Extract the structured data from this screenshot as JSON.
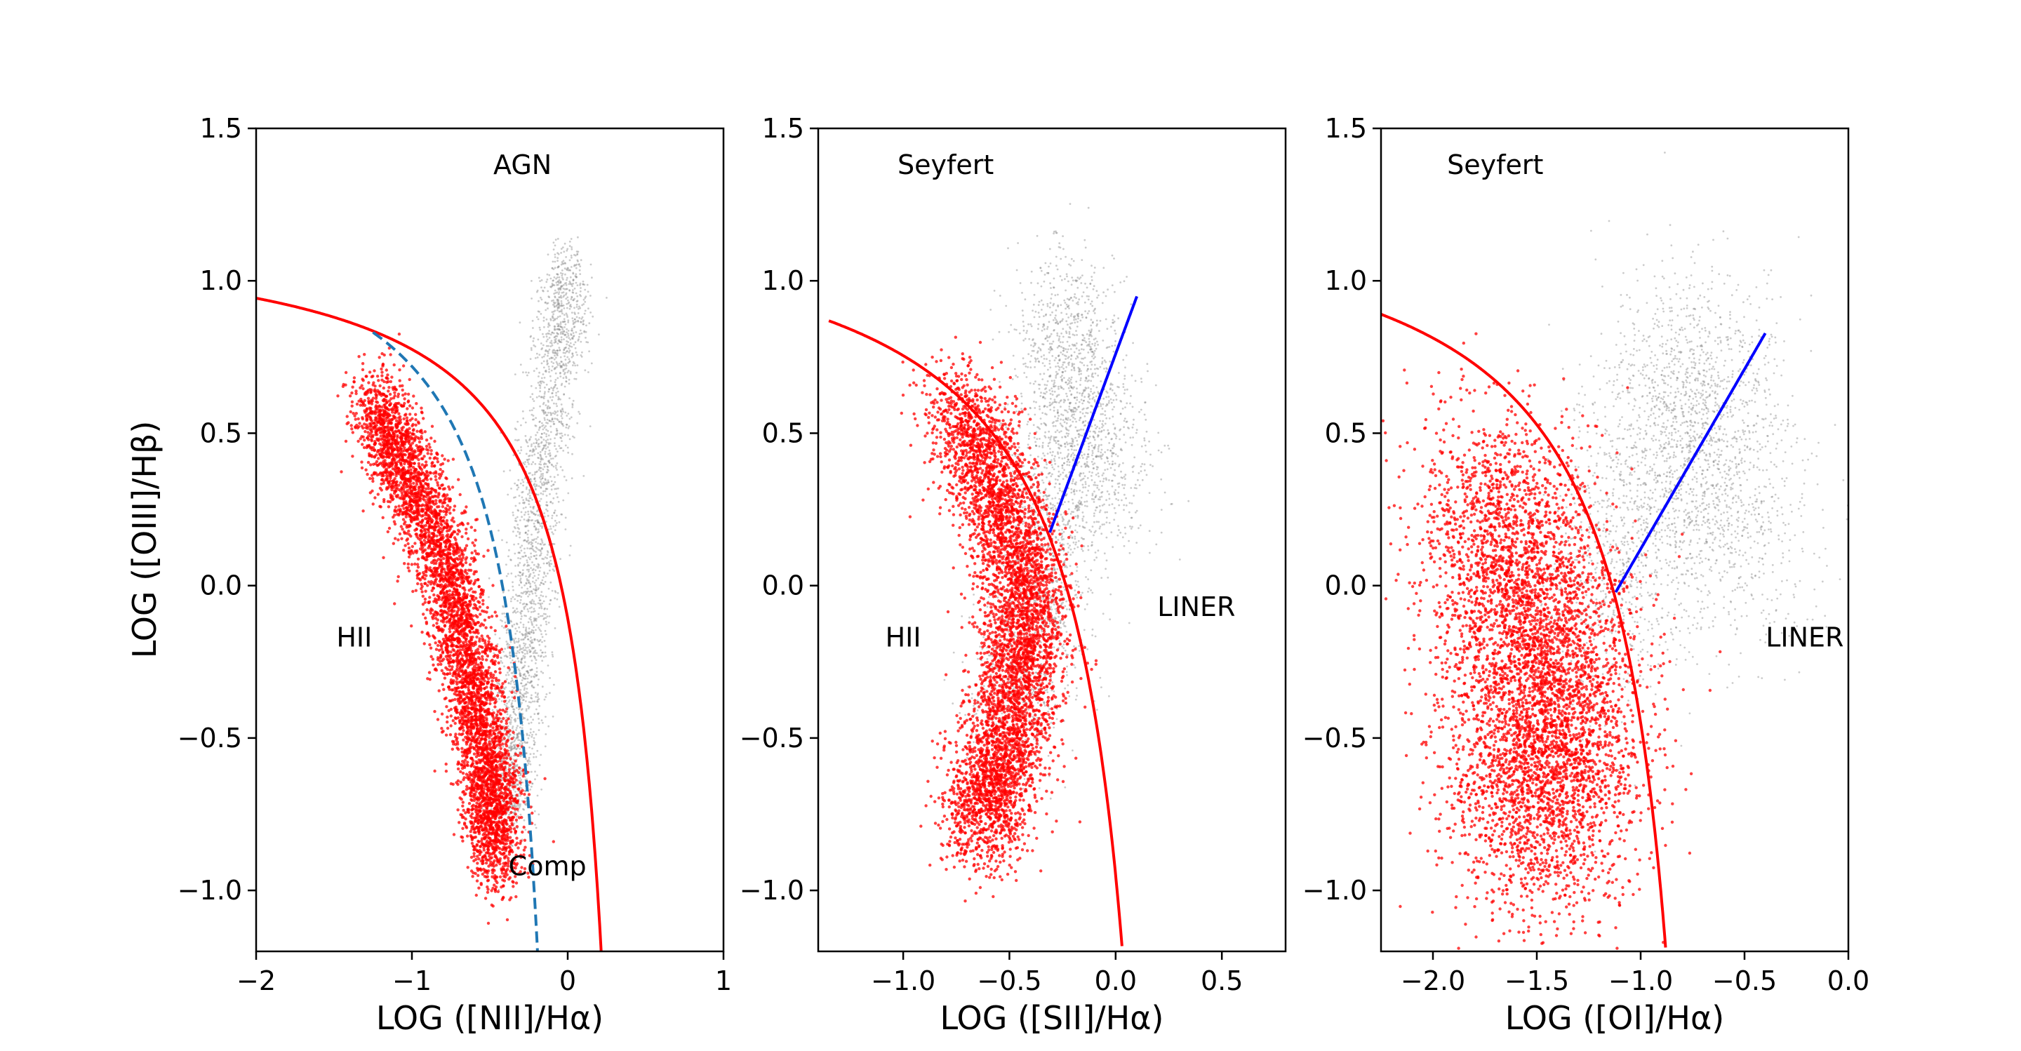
{
  "chart_data": [
    {
      "type": "scatter",
      "xlabel": "LOG ([NII]/Hα)",
      "ylabel": "LOG ([OIII]/Hβ)",
      "xlim": [
        -2,
        1
      ],
      "ylim": [
        -1.2,
        1.5
      ],
      "xticks": [
        -2,
        -1,
        0,
        1
      ],
      "xtick_labels": [
        "−2",
        "−1",
        "0",
        "1"
      ],
      "yticks": [
        -1.0,
        -0.5,
        0.0,
        0.5,
        1.0,
        1.5
      ],
      "ytick_labels": [
        "−1.0",
        "−0.5",
        "0.0",
        "0.5",
        "1.0",
        "1.5"
      ],
      "annotations": [
        {
          "text": "AGN",
          "x": -0.29,
          "y": 1.38
        },
        {
          "text": "HII",
          "x": -1.37,
          "y": -0.17
        },
        {
          "text": "Comp",
          "x": -0.13,
          "y": -0.92
        }
      ],
      "series": [
        {
          "kind": "scatter",
          "color": "#ff0000",
          "region": "star-forming cloud",
          "ridge": [
            [
              -1.25,
              0.6
            ],
            [
              -1.0,
              0.35
            ],
            [
              -0.75,
              0.0
            ],
            [
              -0.6,
              -0.35
            ],
            [
              -0.5,
              -0.65
            ],
            [
              -0.45,
              -0.9
            ]
          ],
          "width": 0.09
        },
        {
          "kind": "scatter",
          "color": "#8c8c8c",
          "region": "AGN cloud",
          "ridge": [
            [
              -0.38,
              -0.75
            ],
            [
              -0.33,
              -0.45
            ],
            [
              -0.25,
              -0.05
            ],
            [
              -0.18,
              0.35
            ],
            [
              -0.07,
              0.75
            ],
            [
              0.0,
              1.05
            ]
          ],
          "width": 0.08
        },
        {
          "kind": "curve",
          "color": "#ff0000",
          "style": "solid",
          "equation": "0.61/(x-0.47)+1.19",
          "x_range": [
            -2.0,
            0.22
          ]
        },
        {
          "kind": "curve",
          "color": "#1f77b4",
          "style": "dashed",
          "equation": "0.61/(x-0.05)+1.3",
          "x_range": [
            -1.25,
            -0.19
          ]
        }
      ]
    },
    {
      "type": "scatter",
      "xlabel": "LOG ([SII]/Hα)",
      "xlim": [
        -1.4,
        0.8
      ],
      "ylim": [
        -1.2,
        1.5
      ],
      "xticks": [
        -1.0,
        -0.5,
        0.0,
        0.5
      ],
      "xtick_labels": [
        "−1.0",
        "−0.5",
        "0.0",
        "0.5"
      ],
      "yticks": [
        -1.0,
        -0.5,
        0.0,
        0.5,
        1.0,
        1.5
      ],
      "ytick_labels": [
        "−1.0",
        "−0.5",
        "0.0",
        "0.5",
        "1.0",
        "1.5"
      ],
      "annotations": [
        {
          "text": "Seyfert",
          "x": -0.8,
          "y": 1.38
        },
        {
          "text": "HII",
          "x": -1.0,
          "y": -0.17
        },
        {
          "text": "LINER",
          "x": 0.38,
          "y": -0.07
        }
      ],
      "series": [
        {
          "kind": "scatter",
          "color": "#ff0000",
          "region": "star-forming arc",
          "ridge": [
            [
              -0.75,
              0.6
            ],
            [
              -0.55,
              0.3
            ],
            [
              -0.42,
              0.0
            ],
            [
              -0.45,
              -0.3
            ],
            [
              -0.55,
              -0.6
            ],
            [
              -0.65,
              -0.8
            ]
          ],
          "width": 0.1
        },
        {
          "kind": "scatter",
          "color": "#8c8c8c",
          "region": "AGN cloud",
          "ridge": [
            [
              -0.55,
              -0.5
            ],
            [
              -0.35,
              -0.1
            ],
            [
              -0.25,
              0.3
            ],
            [
              -0.2,
              0.6
            ],
            [
              -0.25,
              0.95
            ],
            [
              0.05,
              0.2
            ]
          ],
          "width": 0.12
        },
        {
          "kind": "curve",
          "color": "#ff0000",
          "style": "solid",
          "equation": "0.72/(x-0.32)+1.30",
          "x_range": [
            -1.35,
            0.03
          ]
        },
        {
          "kind": "line",
          "color": "#0000ff",
          "style": "solid",
          "equation": "1.89x+0.76",
          "x_range": [
            -0.31,
            0.1
          ]
        }
      ]
    },
    {
      "type": "scatter",
      "xlabel": "LOG ([OI]/Hα)",
      "xlim": [
        -2.25,
        0.0
      ],
      "ylim": [
        -1.2,
        1.5
      ],
      "xticks": [
        -2.0,
        -1.5,
        -1.0,
        -0.5,
        0.0
      ],
      "xtick_labels": [
        "−2.0",
        "−1.5",
        "−1.0",
        "−0.5",
        "0.0"
      ],
      "yticks": [
        -1.0,
        -0.5,
        0.0,
        0.5,
        1.0,
        1.5
      ],
      "ytick_labels": [
        "−1.0",
        "−0.5",
        "0.0",
        "0.5",
        "1.0",
        "1.5"
      ],
      "annotations": [
        {
          "text": "Seyfert",
          "x": -1.7,
          "y": 1.38
        },
        {
          "text": "LINER",
          "x": -0.21,
          "y": -0.17
        }
      ],
      "series": [
        {
          "kind": "scatter",
          "color": "#ff0000",
          "region": "star-forming cloud",
          "ridge": [
            [
              -1.75,
              0.3
            ],
            [
              -1.55,
              0.0
            ],
            [
              -1.45,
              -0.3
            ],
            [
              -1.45,
              -0.6
            ],
            [
              -1.5,
              -0.8
            ]
          ],
          "width": 0.22
        },
        {
          "kind": "scatter",
          "color": "#8c8c8c",
          "region": "AGN cloud",
          "ridge": [
            [
              -1.2,
              -0.2
            ],
            [
              -1.0,
              0.2
            ],
            [
              -0.85,
              0.5
            ],
            [
              -0.75,
              0.8
            ],
            [
              -0.6,
              0.4
            ],
            [
              -0.5,
              0.0
            ]
          ],
          "width": 0.2
        },
        {
          "kind": "curve",
          "color": "#ff0000",
          "style": "solid",
          "equation": "0.73/(x+0.59)+1.33",
          "x_range": [
            -2.25,
            -0.88
          ]
        },
        {
          "kind": "line",
          "color": "#0000ff",
          "style": "solid",
          "equation": "1.18x+1.30",
          "x_range": [
            -1.12,
            -0.4
          ]
        }
      ]
    }
  ]
}
